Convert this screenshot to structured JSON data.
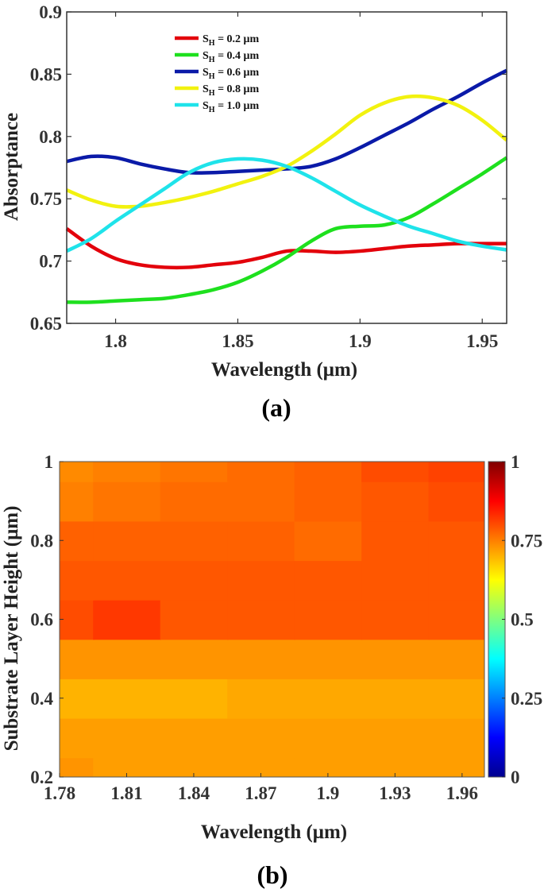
{
  "chart_data": [
    {
      "type": "line",
      "panel_label": "(a)",
      "xlabel": "Wavelength (μm)",
      "ylabel": "Absorptance",
      "xlim": [
        1.78,
        1.96
      ],
      "ylim": [
        0.65,
        0.9
      ],
      "xticks": [
        1.8,
        1.85,
        1.9,
        1.95
      ],
      "xtick_labels": [
        "1.8",
        "1.85",
        "1.9",
        "1.95"
      ],
      "yticks": [
        0.65,
        0.7,
        0.75,
        0.8,
        0.85,
        0.9
      ],
      "ytick_labels": [
        "0.65",
        "0.7",
        "0.75",
        "0.8",
        "0.85",
        "0.9"
      ],
      "legend_position": "top-center",
      "x": [
        1.78,
        1.79,
        1.8,
        1.81,
        1.82,
        1.83,
        1.84,
        1.85,
        1.86,
        1.87,
        1.88,
        1.89,
        1.9,
        1.91,
        1.92,
        1.93,
        1.94,
        1.95,
        1.96
      ],
      "series": [
        {
          "name": "S",
          "sub": "H",
          "suffix": " = 0.2 μm",
          "color": "#e3000b",
          "values": [
            0.726,
            0.712,
            0.702,
            0.697,
            0.695,
            0.695,
            0.697,
            0.699,
            0.703,
            0.708,
            0.708,
            0.707,
            0.708,
            0.71,
            0.712,
            0.713,
            0.714,
            0.714,
            0.714
          ]
        },
        {
          "name": "S",
          "sub": "H",
          "suffix": " = 0.4 μm",
          "color": "#1ee01e",
          "values": [
            0.667,
            0.667,
            0.668,
            0.669,
            0.67,
            0.673,
            0.677,
            0.683,
            0.692,
            0.703,
            0.716,
            0.726,
            0.728,
            0.729,
            0.735,
            0.746,
            0.758,
            0.77,
            0.783
          ]
        },
        {
          "name": "S",
          "sub": "H",
          "suffix": " = 0.6 μm",
          "color": "#0a1aa8",
          "values": [
            0.78,
            0.784,
            0.783,
            0.778,
            0.774,
            0.771,
            0.771,
            0.772,
            0.773,
            0.774,
            0.776,
            0.782,
            0.791,
            0.801,
            0.811,
            0.822,
            0.832,
            0.843,
            0.853
          ]
        },
        {
          "name": "S",
          "sub": "H",
          "suffix": " = 0.8 μm",
          "color": "#f2f20f",
          "values": [
            0.757,
            0.749,
            0.744,
            0.744,
            0.747,
            0.751,
            0.756,
            0.762,
            0.768,
            0.776,
            0.788,
            0.802,
            0.817,
            0.827,
            0.832,
            0.831,
            0.825,
            0.813,
            0.797
          ]
        },
        {
          "name": "S",
          "sub": "H",
          "suffix": " = 1.0 μm",
          "color": "#1fe3ea",
          "values": [
            0.708,
            0.718,
            0.732,
            0.745,
            0.758,
            0.771,
            0.779,
            0.782,
            0.781,
            0.776,
            0.767,
            0.756,
            0.745,
            0.736,
            0.728,
            0.722,
            0.716,
            0.712,
            0.709
          ]
        }
      ]
    },
    {
      "type": "heatmap",
      "panel_label": "(b)",
      "xlabel": "Wavelength (μm)",
      "ylabel": "Substrate Layer Height (μm)",
      "xlim": [
        1.78,
        1.97
      ],
      "ylim": [
        0.2,
        1.0
      ],
      "xticks": [
        1.78,
        1.81,
        1.84,
        1.87,
        1.9,
        1.93,
        1.96
      ],
      "xtick_labels": [
        "1.78",
        "1.81",
        "1.84",
        "1.87",
        "1.9",
        "1.93",
        "1.96"
      ],
      "yticks": [
        0.2,
        0.4,
        0.6,
        0.8,
        1.0
      ],
      "ytick_labels": [
        "0.2",
        "0.4",
        "0.6",
        "0.8",
        "1"
      ],
      "colorbar": {
        "range": [
          0,
          1
        ],
        "ticks": [
          0,
          0.25,
          0.5,
          0.75,
          1
        ],
        "tick_labels": [
          "0",
          "0.25",
          "0.5",
          "0.75",
          "1"
        ],
        "colormap": "jet"
      },
      "x": [
        1.78,
        1.81,
        1.84,
        1.87,
        1.9,
        1.93,
        1.96
      ],
      "y": [
        0.2,
        0.3,
        0.4,
        0.5,
        0.6,
        0.7,
        0.8,
        0.9,
        1.0
      ],
      "z": [
        [
          0.73,
          0.72,
          0.72,
          0.72,
          0.72,
          0.72,
          0.72
        ],
        [
          0.72,
          0.72,
          0.72,
          0.72,
          0.72,
          0.72,
          0.72
        ],
        [
          0.7,
          0.7,
          0.7,
          0.71,
          0.71,
          0.71,
          0.71
        ],
        [
          0.73,
          0.73,
          0.73,
          0.73,
          0.73,
          0.73,
          0.73
        ],
        [
          0.8,
          0.82,
          0.79,
          0.79,
          0.79,
          0.79,
          0.79
        ],
        [
          0.79,
          0.79,
          0.79,
          0.79,
          0.79,
          0.79,
          0.79
        ],
        [
          0.78,
          0.78,
          0.78,
          0.78,
          0.77,
          0.79,
          0.79
        ],
        [
          0.75,
          0.76,
          0.77,
          0.77,
          0.78,
          0.79,
          0.8
        ],
        [
          0.74,
          0.75,
          0.76,
          0.77,
          0.78,
          0.8,
          0.81
        ]
      ]
    }
  ]
}
